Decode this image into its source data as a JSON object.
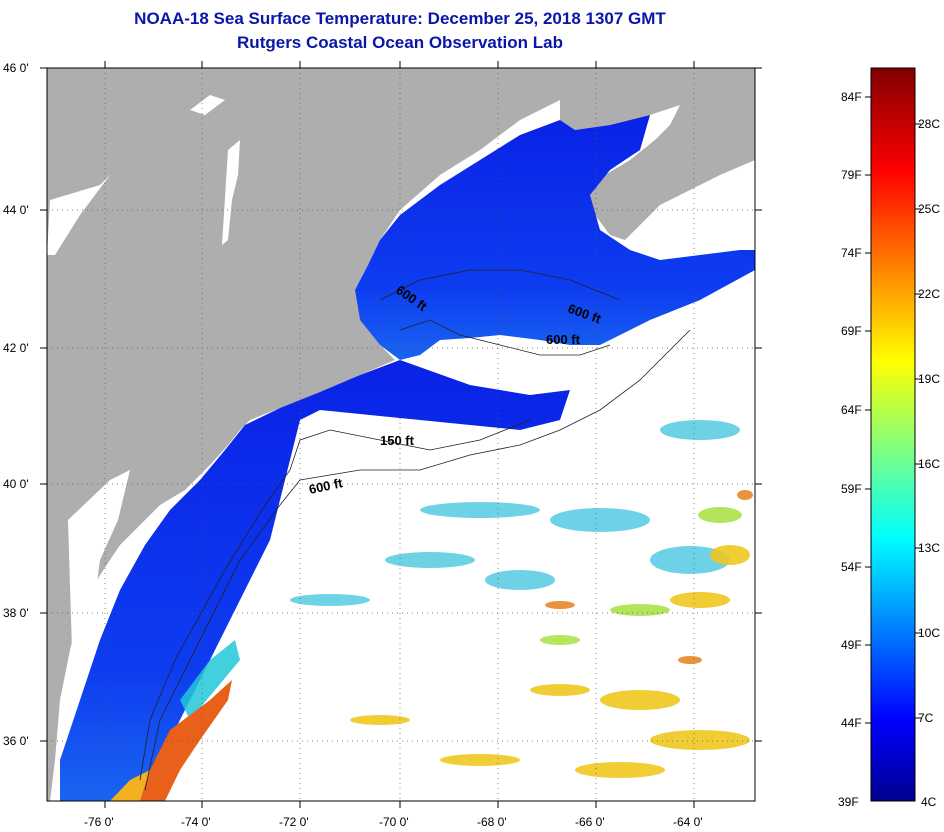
{
  "title": "NOAA-18 Sea Surface Temperature:  December 25, 2018 1307 GMT",
  "subtitle": "Rutgers Coastal Ocean Observation Lab",
  "axes": {
    "lat_labels": [
      "46 0'",
      "44 0'",
      "42 0'",
      "40 0'",
      "38 0'",
      "36 0'"
    ],
    "lon_labels": [
      "-76 0'",
      "-74 0'",
      "-72 0'",
      "-70 0'",
      "-68 0'",
      "-66 0'",
      "-64 0'"
    ]
  },
  "contours": [
    "600 ft",
    "600 ft",
    "600 ft",
    "150 ft",
    "600 ft"
  ],
  "colorbar": {
    "f_labels": [
      "84F",
      "79F",
      "74F",
      "69F",
      "64F",
      "59F",
      "54F",
      "49F",
      "44F",
      "39F"
    ],
    "c_labels": [
      "28C",
      "25C",
      "22C",
      "19C",
      "16C",
      "13C",
      "10C",
      "7C",
      "4C"
    ]
  },
  "colors": {
    "land": "#aeaeae",
    "cold": "#0a20e8",
    "mid": "#22d6c8",
    "warm": "#f0d020",
    "hot": "#e04a10"
  }
}
